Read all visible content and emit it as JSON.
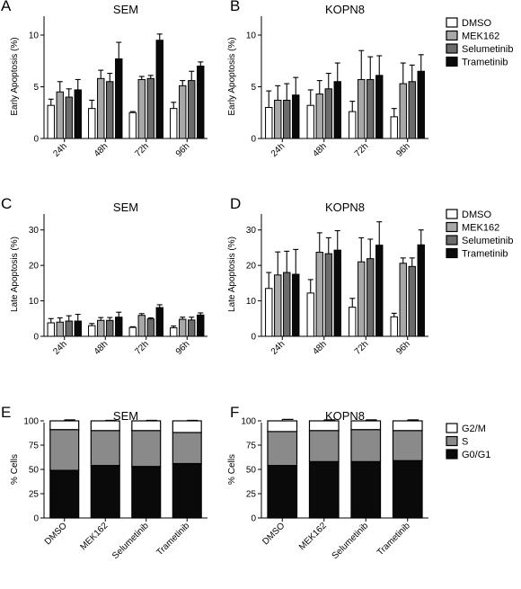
{
  "colors": {
    "DMSO": "#ffffff",
    "MEK162": "#a8a8a8",
    "Selumetinib": "#6b6b6b",
    "Trametinib": "#0a0a0a",
    "G2/M": "#ffffff",
    "S": "#8a8a8a",
    "G0/G1": "#0a0a0a",
    "axis": "#000000"
  },
  "legends": {
    "treatments": [
      "DMSO",
      "MEK162",
      "Selumetinib",
      "Trametinib"
    ],
    "cell_cycle": [
      "G2/M",
      "S",
      "G0/G1"
    ]
  },
  "chart_data": [
    {
      "panel": "A",
      "title": "SEM",
      "type": "bar",
      "ylabel": "Early Apoptosis (%)",
      "ylim": [
        0,
        12
      ],
      "yticks": [
        0,
        5,
        10
      ],
      "categories": [
        "24h",
        "48h",
        "72h",
        "96h"
      ],
      "series": [
        {
          "name": "DMSO",
          "values": [
            3.2,
            2.9,
            2.5,
            2.9
          ],
          "errors": [
            0.6,
            0.8,
            0.1,
            0.6
          ]
        },
        {
          "name": "MEK162",
          "values": [
            4.5,
            5.8,
            5.7,
            5.1
          ],
          "errors": [
            1.0,
            0.8,
            0.3,
            0.5
          ]
        },
        {
          "name": "Selumetinib",
          "values": [
            4.0,
            5.5,
            5.8,
            5.6
          ],
          "errors": [
            0.8,
            0.8,
            0.3,
            0.9
          ]
        },
        {
          "name": "Trametinib",
          "values": [
            4.7,
            7.7,
            9.5,
            7.0
          ],
          "errors": [
            1.0,
            1.6,
            0.6,
            0.4
          ]
        }
      ]
    },
    {
      "panel": "B",
      "title": "KOPN8",
      "type": "bar",
      "ylabel": "Early Apoptosis (%)",
      "ylim": [
        0,
        12
      ],
      "yticks": [
        0,
        5,
        10
      ],
      "categories": [
        "24h",
        "48h",
        "72h",
        "96h"
      ],
      "series": [
        {
          "name": "DMSO",
          "values": [
            3.0,
            3.2,
            2.6,
            2.1
          ],
          "errors": [
            1.6,
            1.5,
            1.0,
            0.8
          ]
        },
        {
          "name": "MEK162",
          "values": [
            3.7,
            4.3,
            5.7,
            5.3
          ],
          "errors": [
            1.4,
            1.3,
            2.8,
            2.0
          ]
        },
        {
          "name": "Selumetinib",
          "values": [
            3.7,
            4.8,
            5.7,
            5.5
          ],
          "errors": [
            1.6,
            1.5,
            2.2,
            1.6
          ]
        },
        {
          "name": "Trametinib",
          "values": [
            4.2,
            5.5,
            6.1,
            6.5
          ],
          "errors": [
            1.7,
            1.8,
            1.9,
            1.6
          ]
        }
      ]
    },
    {
      "panel": "C",
      "title": "SEM",
      "type": "bar",
      "ylabel": "Late Apoptosis (%)",
      "ylim": [
        0,
        35
      ],
      "yticks": [
        0,
        10,
        20,
        30
      ],
      "categories": [
        "24h",
        "48h",
        "72h",
        "96h"
      ],
      "series": [
        {
          "name": "DMSO",
          "values": [
            3.8,
            3.0,
            2.5,
            2.4
          ],
          "errors": [
            1.2,
            0.6,
            0.2,
            0.5
          ]
        },
        {
          "name": "MEK162",
          "values": [
            4.0,
            4.5,
            5.9,
            4.8
          ],
          "errors": [
            1.2,
            0.8,
            0.5,
            0.6
          ]
        },
        {
          "name": "Selumetinib",
          "values": [
            4.3,
            4.5,
            4.9,
            4.6
          ],
          "errors": [
            1.5,
            0.8,
            0.3,
            0.8
          ]
        },
        {
          "name": "Trametinib",
          "values": [
            4.3,
            5.4,
            8.1,
            6.0
          ],
          "errors": [
            1.9,
            1.4,
            0.8,
            0.6
          ]
        }
      ]
    },
    {
      "panel": "D",
      "title": "KOPN8",
      "type": "bar",
      "ylabel": "Late Apoptosis (%)",
      "ylim": [
        0,
        35
      ],
      "yticks": [
        0,
        10,
        20,
        30
      ],
      "categories": [
        "24h",
        "48h",
        "72h",
        "96h"
      ],
      "series": [
        {
          "name": "DMSO",
          "values": [
            13.5,
            12.2,
            8.2,
            5.5
          ],
          "errors": [
            4.5,
            3.8,
            2.5,
            1.0
          ]
        },
        {
          "name": "MEK162",
          "values": [
            17.3,
            23.7,
            21.0,
            20.6
          ],
          "errors": [
            6.5,
            5.5,
            6.8,
            1.5
          ]
        },
        {
          "name": "Selumetinib",
          "values": [
            18.0,
            23.3,
            21.9,
            19.7
          ],
          "errors": [
            6.0,
            4.5,
            5.5,
            2.4
          ]
        },
        {
          "name": "Trametinib",
          "values": [
            17.5,
            24.3,
            25.7,
            25.8
          ],
          "errors": [
            7.0,
            5.5,
            6.6,
            4.2
          ]
        }
      ]
    },
    {
      "panel": "E",
      "title": "SEM",
      "type": "bar",
      "stacked": true,
      "ylabel": "% Cells",
      "ylim": [
        0,
        100
      ],
      "yticks": [
        0,
        25,
        50,
        75,
        100
      ],
      "categories": [
        "DMSO",
        "MEK162",
        "Selumetinib",
        "Trametinib"
      ],
      "series": [
        {
          "name": "G0/G1",
          "values": [
            49,
            54,
            53,
            56
          ],
          "errors": [
            1,
            1,
            1,
            2
          ]
        },
        {
          "name": "S",
          "values": [
            42,
            36,
            37,
            32
          ],
          "errors": [
            1,
            1,
            1,
            2
          ]
        },
        {
          "name": "G2/M",
          "values": [
            9,
            10,
            10,
            12
          ],
          "errors": [
            1,
            0.5,
            0.5,
            0.5
          ]
        }
      ]
    },
    {
      "panel": "F",
      "title": "KOPN8",
      "type": "bar",
      "stacked": true,
      "ylabel": "% Cells",
      "ylim": [
        0,
        100
      ],
      "yticks": [
        0,
        25,
        50,
        75,
        100
      ],
      "categories": [
        "DMSO",
        "MEK162",
        "Selumetinib",
        "Trametinib"
      ],
      "series": [
        {
          "name": "G0/G1",
          "values": [
            54,
            58,
            58,
            59
          ],
          "errors": [
            3,
            4,
            4,
            4
          ]
        },
        {
          "name": "S",
          "values": [
            35,
            32,
            33,
            31
          ],
          "errors": [
            4,
            5,
            5,
            5
          ]
        },
        {
          "name": "G2/M",
          "values": [
            11,
            10,
            9,
            10
          ],
          "errors": [
            1.5,
            1,
            1,
            1
          ]
        }
      ]
    }
  ]
}
